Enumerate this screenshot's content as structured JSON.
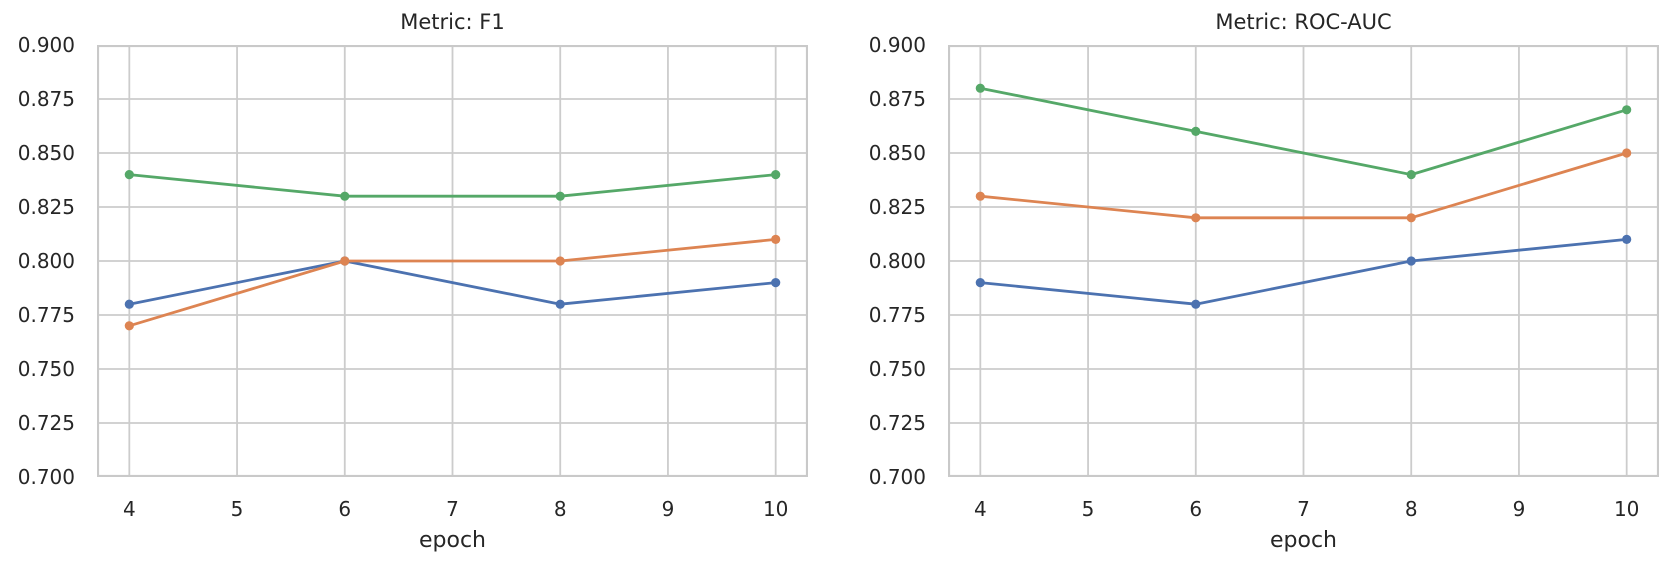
{
  "figure": {
    "background_color": "#ffffff",
    "grid_color": "#cccccc",
    "spine_color": "#c9c9c9",
    "text_color": "#262626"
  },
  "chart_data": [
    {
      "type": "line",
      "title": "Metric: F1",
      "xlabel": "epoch",
      "ylabel": "",
      "x": [
        4,
        6,
        8,
        10
      ],
      "series": [
        {
          "name": "blue",
          "color": "#4C72B0",
          "values": [
            0.78,
            0.8,
            0.78,
            0.79
          ]
        },
        {
          "name": "orange",
          "color": "#DD8452",
          "values": [
            0.77,
            0.8,
            0.8,
            0.81
          ]
        },
        {
          "name": "green",
          "color": "#55A868",
          "values": [
            0.84,
            0.83,
            0.83,
            0.84
          ]
        }
      ],
      "xlim": [
        3.7,
        10.3
      ],
      "ylim": [
        0.7,
        0.9
      ],
      "x_ticks": {
        "values": [
          4,
          5,
          6,
          7,
          8,
          9,
          10
        ],
        "labels": [
          "4",
          "5",
          "6",
          "7",
          "8",
          "9",
          "10"
        ]
      },
      "y_ticks": {
        "values": [
          0.7,
          0.725,
          0.75,
          0.775,
          0.8,
          0.825,
          0.85,
          0.875,
          0.9
        ],
        "labels": [
          "0.700",
          "0.725",
          "0.750",
          "0.775",
          "0.800",
          "0.825",
          "0.850",
          "0.875",
          "0.900"
        ]
      },
      "grid": true,
      "legend": null,
      "marker": "circle"
    },
    {
      "type": "line",
      "title": "Metric: ROC-AUC",
      "xlabel": "epoch",
      "ylabel": "",
      "x": [
        4,
        6,
        8,
        10
      ],
      "series": [
        {
          "name": "blue",
          "color": "#4C72B0",
          "values": [
            0.79,
            0.78,
            0.8,
            0.81
          ]
        },
        {
          "name": "orange",
          "color": "#DD8452",
          "values": [
            0.83,
            0.82,
            0.82,
            0.85
          ]
        },
        {
          "name": "green",
          "color": "#55A868",
          "values": [
            0.88,
            0.86,
            0.84,
            0.87
          ]
        }
      ],
      "xlim": [
        3.7,
        10.3
      ],
      "ylim": [
        0.7,
        0.9
      ],
      "x_ticks": {
        "values": [
          4,
          5,
          6,
          7,
          8,
          9,
          10
        ],
        "labels": [
          "4",
          "5",
          "6",
          "7",
          "8",
          "9",
          "10"
        ]
      },
      "y_ticks": {
        "values": [
          0.7,
          0.725,
          0.75,
          0.775,
          0.8,
          0.825,
          0.85,
          0.875,
          0.9
        ],
        "labels": [
          "0.700",
          "0.725",
          "0.750",
          "0.775",
          "0.800",
          "0.825",
          "0.850",
          "0.875",
          "0.900"
        ]
      },
      "grid": true,
      "legend": null,
      "marker": "circle"
    }
  ]
}
